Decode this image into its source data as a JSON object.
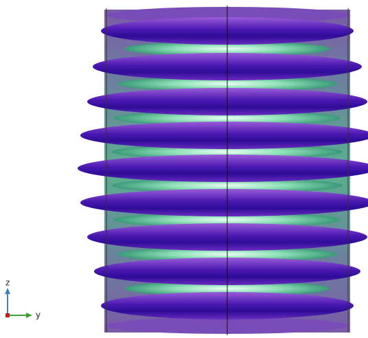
{
  "axes": {
    "vertical": "z",
    "horizontal": "y"
  }
}
